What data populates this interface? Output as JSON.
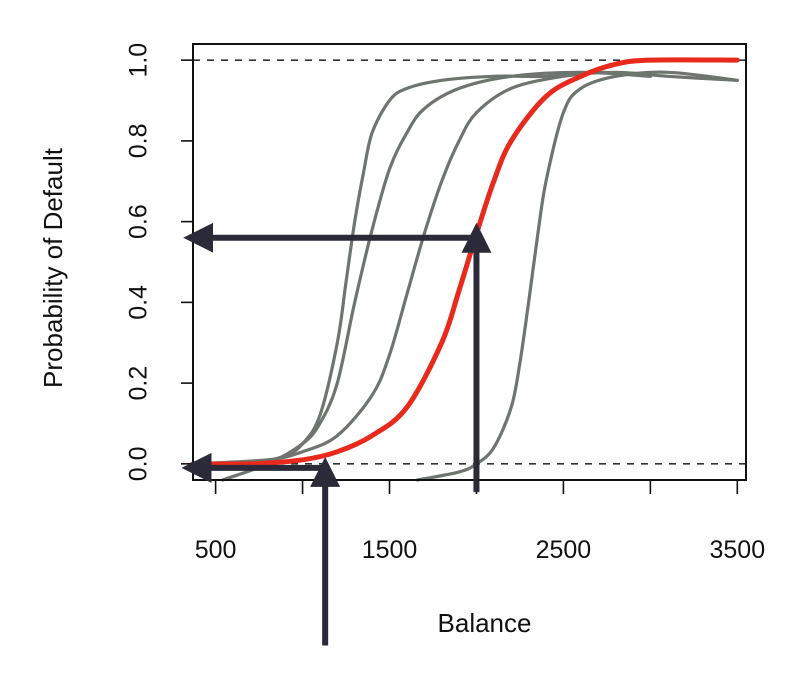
{
  "chart_data": {
    "type": "line",
    "title": "",
    "xlabel": "Balance",
    "ylabel": "Probability of Default",
    "xlim": [
      370,
      3550
    ],
    "ylim": [
      -0.04,
      1.04
    ],
    "x_ticks": [
      500,
      1000,
      1500,
      2000,
      2500,
      3000,
      3500
    ],
    "x_tick_labels": [
      "500",
      "",
      "1500",
      "",
      "2500",
      "",
      "3500"
    ],
    "y_ticks": [
      0.0,
      0.2,
      0.4,
      0.6,
      0.8,
      1.0
    ],
    "y_tick_labels": [
      "0.0",
      "0.2",
      "0.4",
      "0.6",
      "0.8",
      "1.0"
    ],
    "reference_lines": [
      0,
      1
    ],
    "grid": false,
    "legend": "none",
    "colors": {
      "highlight_curve": "#e8291c",
      "other_curves": "#6e746e",
      "arrows": "#2a2a38",
      "axis": "#111111"
    },
    "series": [
      {
        "highlight": true,
        "x": [
          370,
          700,
          1000,
          1200,
          1400,
          1600,
          1800,
          1900,
          2000,
          2100,
          2200,
          2400,
          2600,
          2800,
          3000,
          3500
        ],
        "y": [
          0.0,
          0.0,
          0.01,
          0.03,
          0.07,
          0.14,
          0.3,
          0.43,
          0.57,
          0.7,
          0.8,
          0.91,
          0.96,
          0.99,
          1.0,
          1.0
        ]
      },
      {
        "highlight": false,
        "x": [
          400,
          700,
          900,
          1000,
          1100,
          1200,
          1250,
          1300,
          1350,
          1400,
          1500,
          1600,
          1800,
          2100,
          2400,
          2700,
          3000
        ],
        "y": [
          -0.01,
          0.0,
          0.02,
          0.05,
          0.12,
          0.3,
          0.45,
          0.6,
          0.72,
          0.82,
          0.9,
          0.93,
          0.95,
          0.96,
          0.96,
          0.97,
          0.96
        ]
      },
      {
        "highlight": false,
        "x": [
          540,
          800,
          1000,
          1100,
          1200,
          1300,
          1400,
          1500,
          1600,
          1700,
          1900,
          2200,
          2600,
          3000
        ],
        "y": [
          -0.04,
          0.0,
          0.05,
          0.1,
          0.2,
          0.4,
          0.58,
          0.73,
          0.82,
          0.88,
          0.93,
          0.96,
          0.97,
          0.96
        ]
      },
      {
        "highlight": false,
        "x": [
          360,
          800,
          1000,
          1200,
          1400,
          1500,
          1600,
          1700,
          1800,
          1900,
          2000,
          2200,
          2500,
          2800,
          3100,
          3500
        ],
        "y": [
          0.0,
          0.01,
          0.03,
          0.07,
          0.17,
          0.27,
          0.42,
          0.57,
          0.7,
          0.8,
          0.87,
          0.93,
          0.96,
          0.97,
          0.96,
          0.95
        ]
      },
      {
        "highlight": false,
        "x": [
          1660,
          1900,
          2000,
          2100,
          2200,
          2250,
          2300,
          2350,
          2400,
          2500,
          2600,
          2800,
          3100,
          3500
        ],
        "y": [
          -0.04,
          -0.02,
          0.0,
          0.04,
          0.14,
          0.25,
          0.4,
          0.56,
          0.7,
          0.87,
          0.93,
          0.96,
          0.97,
          0.95
        ]
      }
    ],
    "annotations": [
      {
        "type": "arrow",
        "from": [
          2000,
          -0.07
        ],
        "to": [
          2000,
          0.56
        ]
      },
      {
        "type": "arrow",
        "from": [
          2030,
          0.56
        ],
        "to": [
          400,
          0.56
        ]
      },
      {
        "type": "arrow",
        "from": [
          1130,
          -0.45
        ],
        "to": [
          1130,
          -0.02
        ]
      },
      {
        "type": "arrow",
        "from": [
          1130,
          -0.01
        ],
        "to": [
          390,
          -0.01
        ]
      }
    ]
  }
}
